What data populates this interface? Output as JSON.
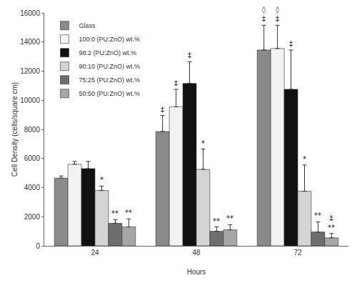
{
  "chart_data": {
    "type": "bar",
    "x_label": "Hours",
    "y_label": "Cell Density (cells/square cm)",
    "categories": [
      "24",
      "48",
      "72"
    ],
    "ylim": [
      0,
      16000
    ],
    "yticks": [
      0,
      2000,
      4000,
      6000,
      8000,
      10000,
      12000,
      14000,
      16000
    ],
    "grid": false,
    "legend": "top left",
    "series": [
      {
        "name": "Glass",
        "color": "#8a8a8a",
        "values": [
          4650,
          7850,
          13450
        ],
        "errors": [
          150,
          1100,
          1700
        ],
        "significance": [
          [],
          [
            "‡"
          ],
          [
            "◊",
            "‡"
          ]
        ]
      },
      {
        "name": "100:0 (PU:ZnO) wt.%",
        "color": "#f2f2f2",
        "values": [
          5600,
          9550,
          13550
        ],
        "errors": [
          200,
          1200,
          1600
        ],
        "significance": [
          [],
          [
            "‡"
          ],
          [
            "◊",
            "‡"
          ]
        ]
      },
      {
        "name": "98:2 (PU:ZnO) wt.%",
        "color": "#111111",
        "values": [
          5300,
          11150,
          10750
        ],
        "errors": [
          500,
          1500,
          2700
        ],
        "significance": [
          [],
          [
            "‡"
          ],
          [
            "‡"
          ]
        ]
      },
      {
        "name": "90:10 (PU:ZnO) wt.%",
        "color": "#d4d4d4",
        "values": [
          3800,
          5250,
          3750
        ],
        "errors": [
          300,
          1400,
          1800
        ],
        "significance": [
          [
            "*"
          ],
          [
            "*"
          ],
          [
            "*"
          ]
        ]
      },
      {
        "name": "75:25 (PU:ZnO) wt.%",
        "color": "#6e6e6e",
        "values": [
          1550,
          1000,
          950
        ],
        "errors": [
          250,
          300,
          700
        ],
        "significance": [
          [
            "**"
          ],
          [
            "**"
          ],
          [
            "**"
          ]
        ]
      },
      {
        "name": "50:50 (PU:ZnO) wt.%",
        "color": "#a6a6a6",
        "values": [
          1300,
          1100,
          550
        ],
        "errors": [
          550,
          350,
          300
        ],
        "significance": [
          [
            "**"
          ],
          [
            "**"
          ],
          [
            "‡",
            "**"
          ]
        ]
      }
    ]
  }
}
